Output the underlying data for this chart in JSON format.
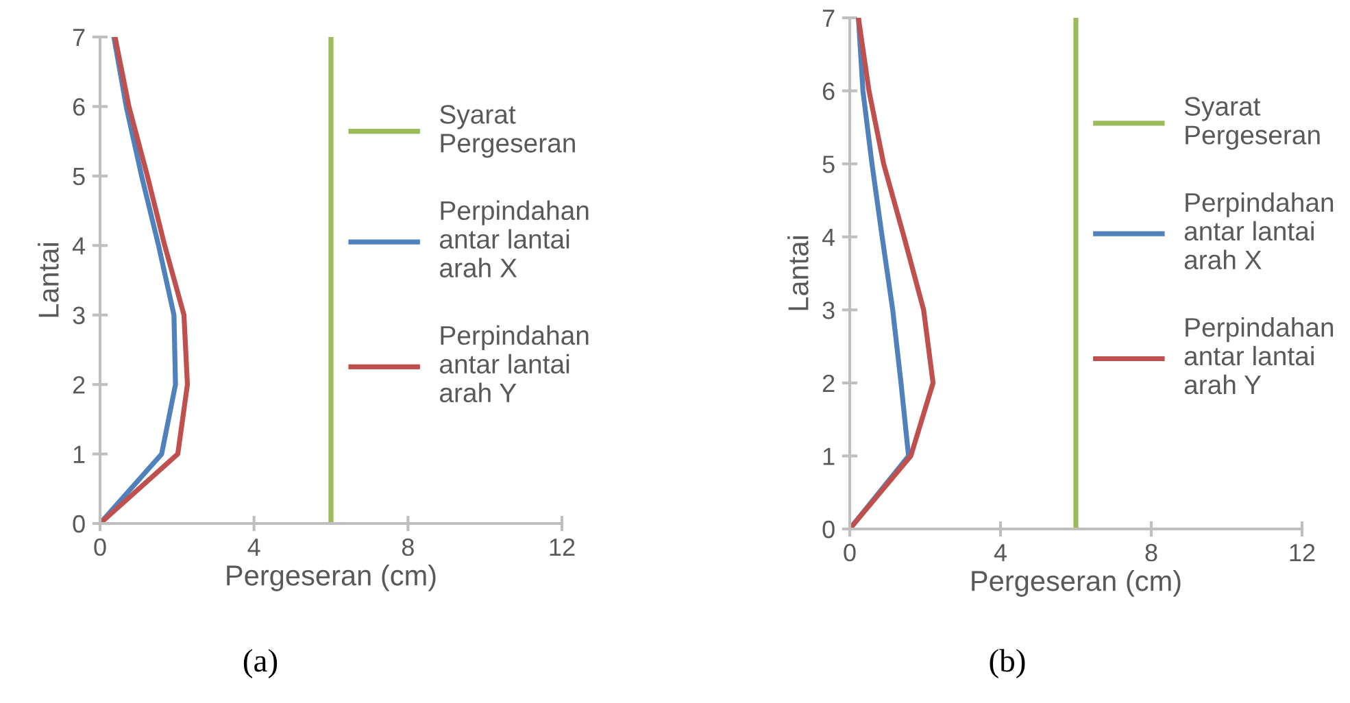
{
  "chart_data": [
    {
      "type": "line",
      "xlabel": "Pergeseran (cm)",
      "ylabel": "Lantai",
      "xlim": [
        0,
        12
      ],
      "xticks": [
        0,
        4,
        8,
        12
      ],
      "ylim": [
        0,
        7
      ],
      "yticks": [
        0,
        1,
        2,
        3,
        4,
        5,
        6,
        7
      ],
      "grid": false,
      "legend": "right",
      "annotations": [
        "(a)"
      ],
      "series": [
        {
          "name": "Syarat\nPergeseran",
          "color": "#9bbb59",
          "x": [
            6,
            6
          ],
          "values": [
            0,
            7
          ]
        },
        {
          "name": "Perpindahan\nantar lantai\narah X",
          "color": "#4f81bd",
          "x": [
            0,
            1.6,
            1.96,
            1.92,
            1.52,
            1.08,
            0.68,
            0.36
          ],
          "values": [
            0,
            1,
            2,
            3,
            4,
            5,
            6,
            7
          ]
        },
        {
          "name": "Perpindahan\nantar lantai\narah Y",
          "color": "#c0504d",
          "x": [
            0,
            2.02,
            2.27,
            2.18,
            1.68,
            1.23,
            0.75,
            0.39
          ],
          "values": [
            0,
            1,
            2,
            3,
            4,
            5,
            6,
            7
          ]
        }
      ]
    },
    {
      "type": "line",
      "xlabel": "Pergeseran (cm)",
      "ylabel": "Lantai",
      "xlim": [
        0,
        12
      ],
      "xticks": [
        0,
        4,
        8,
        12
      ],
      "ylim": [
        0,
        7
      ],
      "yticks": [
        0,
        1,
        2,
        3,
        4,
        5,
        6,
        7
      ],
      "grid": false,
      "legend": "right",
      "annotations": [
        "(b)"
      ],
      "series": [
        {
          "name": "Syarat\nPergeseran",
          "color": "#9bbb59",
          "x": [
            6,
            6
          ],
          "values": [
            0,
            7
          ]
        },
        {
          "name": "Perpindahan\nantar lantai\narah X",
          "color": "#4f81bd",
          "x": [
            0,
            1.56,
            1.36,
            1.14,
            0.86,
            0.59,
            0.35,
            0.23
          ],
          "values": [
            0,
            1,
            2,
            3,
            4,
            5,
            6,
            7
          ]
        },
        {
          "name": "Perpindahan\nantar lantai\narah Y",
          "color": "#c0504d",
          "x": [
            0,
            1.62,
            2.21,
            1.96,
            1.44,
            0.9,
            0.51,
            0.23
          ],
          "values": [
            0,
            1,
            2,
            3,
            4,
            5,
            6,
            7
          ]
        }
      ]
    }
  ]
}
